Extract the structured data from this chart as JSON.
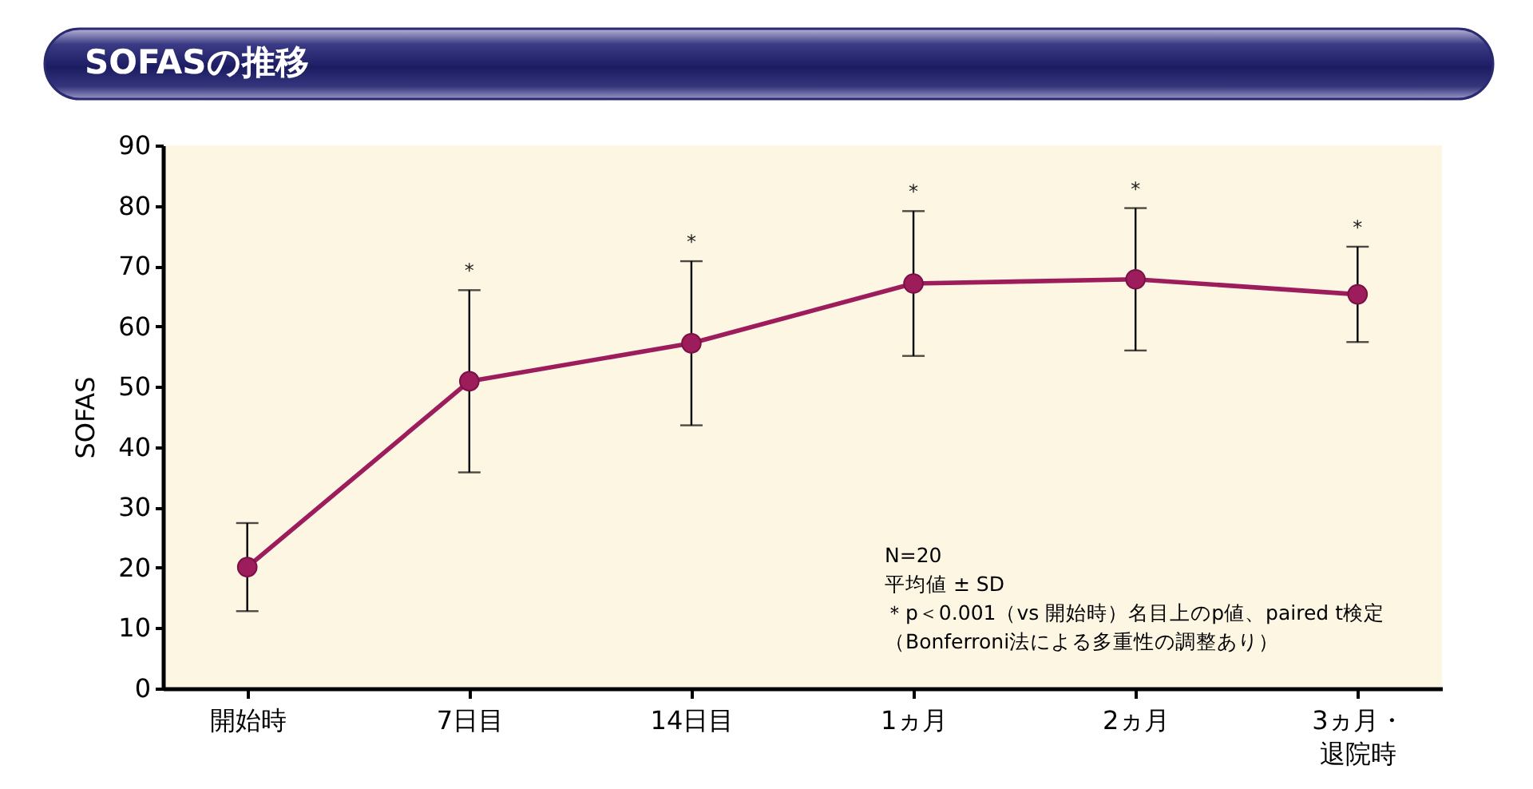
{
  "chart_data": {
    "type": "line",
    "title": "SOFASの推移",
    "ylabel": "SOFAS",
    "categories": [
      "開始時",
      "7日目",
      "14日目",
      "1ヵ月",
      "2ヵ月",
      "3ヵ月・退院時"
    ],
    "values": [
      20.1,
      50.9,
      57.2,
      67.1,
      67.8,
      65.3
    ],
    "errors": [
      7.3,
      15.1,
      13.6,
      12.0,
      11.8,
      7.9
    ],
    "color": "#9c1c5c",
    "ylim": [
      0,
      90
    ],
    "yticks": [
      0,
      10,
      20,
      30,
      40,
      50,
      60,
      70,
      80,
      90
    ],
    "marker": "circle",
    "line_style": "solid",
    "annotations": [
      "*",
      "*",
      "*",
      "*",
      "*",
      "N=20",
      "平均値 ± SD",
      "＊p＜0.001（vs 開始時）名目上のp値、paired t検定",
      "（Bonferroni法による多重性の調整あり）"
    ]
  }
}
